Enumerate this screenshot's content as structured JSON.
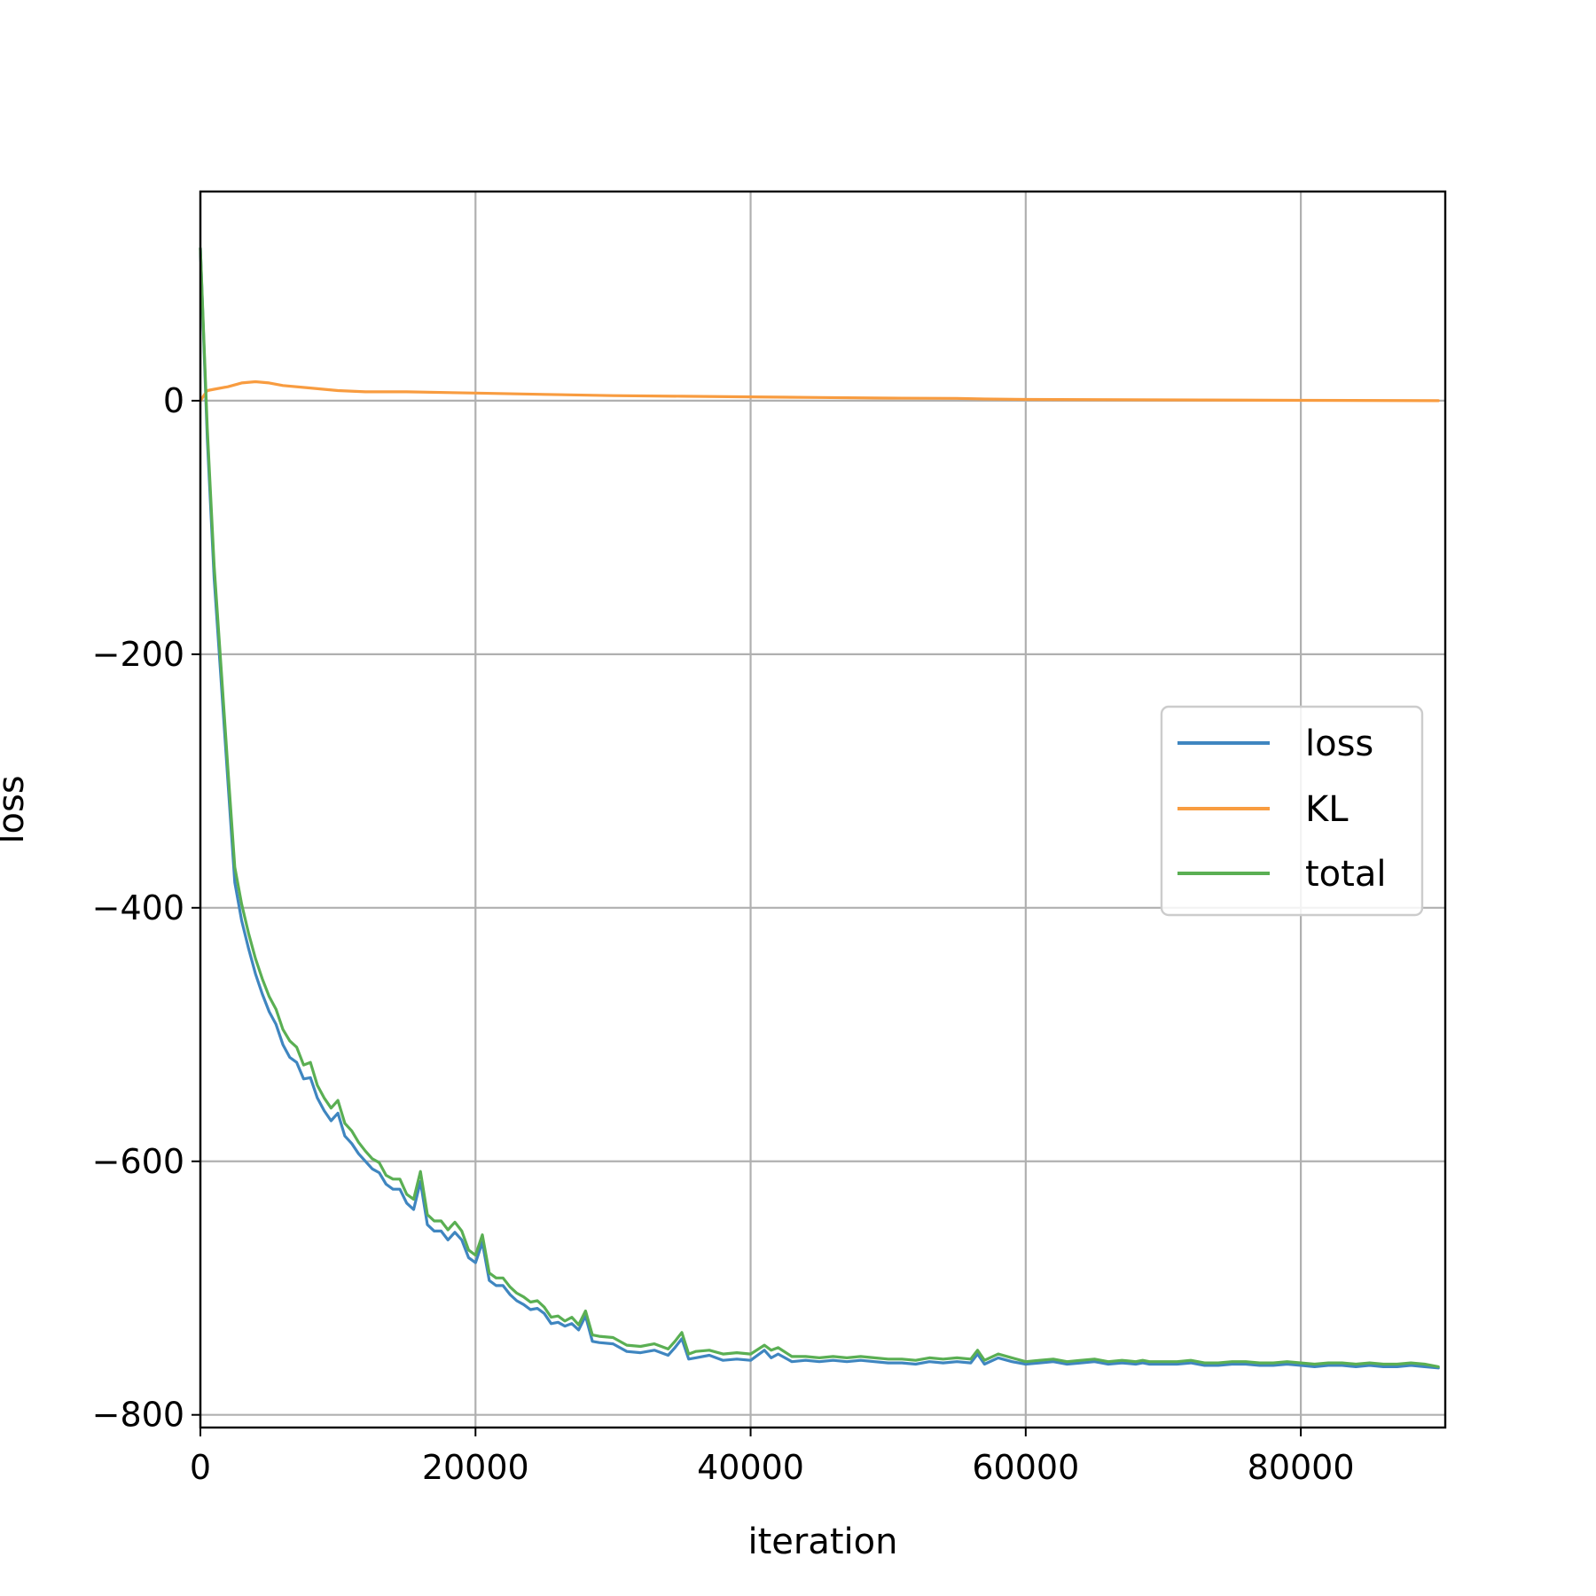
{
  "chart_data": {
    "type": "line",
    "title": "",
    "xlabel": "iteration",
    "ylabel": "loss",
    "xlim": [
      0,
      90500
    ],
    "ylim": [
      -810,
      165
    ],
    "xticks": [
      0,
      20000,
      40000,
      60000,
      80000
    ],
    "xtick_labels": [
      "0",
      "20000",
      "40000",
      "60000",
      "80000"
    ],
    "yticks": [
      -800,
      -600,
      -400,
      -200,
      0
    ],
    "ytick_labels": [
      "−800",
      "−600",
      "−400",
      "−200",
      "0"
    ],
    "grid": true,
    "legend": {
      "placement": "center-right",
      "entries": [
        "loss",
        "KL",
        "total"
      ]
    },
    "series": [
      {
        "name": "loss",
        "color": "#3f86c0",
        "x": [
          0,
          500,
          1000,
          1500,
          2000,
          2500,
          3000,
          3500,
          4000,
          4500,
          5000,
          5500,
          6000,
          6500,
          7000,
          7500,
          8000,
          8500,
          9000,
          9500,
          10000,
          10500,
          11000,
          11500,
          12000,
          12500,
          13000,
          13500,
          14000,
          14500,
          15000,
          15500,
          16000,
          16500,
          17000,
          17500,
          18000,
          18500,
          19000,
          19500,
          20000,
          20500,
          21000,
          21500,
          22000,
          22500,
          23000,
          23500,
          24000,
          24500,
          25000,
          25500,
          26000,
          26500,
          27000,
          27500,
          28000,
          28500,
          29000,
          30000,
          31000,
          32000,
          33000,
          34000,
          34500,
          35000,
          35500,
          36000,
          37000,
          38000,
          39000,
          40000,
          41000,
          41500,
          42000,
          43000,
          44000,
          45000,
          46000,
          47000,
          48000,
          49000,
          50000,
          51000,
          52000,
          53000,
          54000,
          55000,
          56000,
          56500,
          57000,
          58000,
          59000,
          60000,
          61000,
          62000,
          63000,
          64000,
          65000,
          66000,
          67000,
          68000,
          68500,
          69000,
          70000,
          71000,
          72000,
          73000,
          74000,
          75000,
          76000,
          77000,
          78000,
          79000,
          80000,
          81000,
          82000,
          83000,
          84000,
          85000,
          86000,
          87000,
          88000,
          89000,
          90000
        ],
        "values": [
          120,
          -30,
          -140,
          -220,
          -300,
          -380,
          -410,
          -432,
          -452,
          -468,
          -482,
          -492,
          -508,
          -518,
          -522,
          -535,
          -534,
          -550,
          -560,
          -568,
          -562,
          -580,
          -586,
          -594,
          -600,
          -606,
          -609,
          -618,
          -622,
          -622,
          -633,
          -638,
          -616,
          -650,
          -655,
          -655,
          -662,
          -656,
          -662,
          -676,
          -680,
          -664,
          -694,
          -698,
          -698,
          -705,
          -710,
          -713,
          -717,
          -716,
          -720,
          -728,
          -727,
          -730,
          -728,
          -733,
          -722,
          -742,
          -743,
          -744,
          -750,
          -751,
          -749,
          -753,
          -747,
          -740,
          -756,
          -755,
          -753,
          -757,
          -756,
          -757,
          -749,
          -755,
          -752,
          -758,
          -757,
          -758,
          -757,
          -758,
          -757,
          -758,
          -759,
          -759,
          -760,
          -758,
          -759,
          -758,
          -759,
          -752,
          -760,
          -755,
          -758,
          -760,
          -759,
          -758,
          -760,
          -759,
          -758,
          -760,
          -759,
          -760,
          -759,
          -760,
          -760,
          -760,
          -759,
          -761,
          -761,
          -760,
          -760,
          -761,
          -761,
          -760,
          -761,
          -762,
          -761,
          -761,
          -762,
          -761,
          -762,
          -762,
          -761,
          -762,
          -763
        ]
      },
      {
        "name": "KL",
        "color": "#f89c40",
        "x": [
          0,
          500,
          1000,
          2000,
          3000,
          4000,
          5000,
          6000,
          8000,
          10000,
          12000,
          15000,
          20000,
          25000,
          30000,
          35000,
          40000,
          45000,
          50000,
          55000,
          57000,
          60000,
          70000,
          80000,
          90000
        ],
        "values": [
          0,
          8,
          9,
          11,
          14,
          15,
          14,
          12,
          10,
          8,
          7,
          7,
          6,
          5,
          4,
          3.5,
          3,
          2.5,
          2,
          1.8,
          1.3,
          1,
          0.6,
          0.3,
          0
        ]
      },
      {
        "name": "total",
        "color": "#5aaf53",
        "x": [
          0,
          500,
          1000,
          1500,
          2000,
          2500,
          3000,
          3500,
          4000,
          4500,
          5000,
          5500,
          6000,
          6500,
          7000,
          7500,
          8000,
          8500,
          9000,
          9500,
          10000,
          10500,
          11000,
          11500,
          12000,
          12500,
          13000,
          13500,
          14000,
          14500,
          15000,
          15500,
          16000,
          16500,
          17000,
          17500,
          18000,
          18500,
          19000,
          19500,
          20000,
          20500,
          21000,
          21500,
          22000,
          22500,
          23000,
          23500,
          24000,
          24500,
          25000,
          25500,
          26000,
          26500,
          27000,
          27500,
          28000,
          28500,
          29000,
          30000,
          31000,
          32000,
          33000,
          34000,
          34500,
          35000,
          35500,
          36000,
          37000,
          38000,
          39000,
          40000,
          41000,
          41500,
          42000,
          43000,
          44000,
          45000,
          46000,
          47000,
          48000,
          49000,
          50000,
          51000,
          52000,
          53000,
          54000,
          55000,
          56000,
          56500,
          57000,
          58000,
          59000,
          60000,
          61000,
          62000,
          63000,
          64000,
          65000,
          66000,
          67000,
          68000,
          68500,
          69000,
          70000,
          71000,
          72000,
          73000,
          74000,
          75000,
          76000,
          77000,
          78000,
          79000,
          80000,
          81000,
          82000,
          83000,
          84000,
          85000,
          86000,
          87000,
          88000,
          89000,
          90000
        ],
        "values": [
          120,
          -22,
          -130,
          -210,
          -290,
          -368,
          -397,
          -420,
          -440,
          -456,
          -470,
          -480,
          -496,
          -505,
          -510,
          -524,
          -522,
          -540,
          -550,
          -558,
          -552,
          -570,
          -576,
          -585,
          -592,
          -598,
          -601,
          -611,
          -614,
          -614,
          -626,
          -630,
          -608,
          -642,
          -647,
          -647,
          -654,
          -648,
          -655,
          -670,
          -674,
          -658,
          -688,
          -692,
          -692,
          -699,
          -704,
          -707,
          -711,
          -710,
          -715,
          -723,
          -722,
          -726,
          -723,
          -729,
          -718,
          -737,
          -738,
          -739,
          -745,
          -746,
          -744,
          -748,
          -742,
          -735,
          -752,
          -750,
          -749,
          -752,
          -751,
          -752,
          -745,
          -749,
          -747,
          -754,
          -754,
          -755,
          -754,
          -755,
          -754,
          -755,
          -756,
          -756,
          -757,
          -755,
          -756,
          -755,
          -756,
          -749,
          -757,
          -752,
          -755,
          -758,
          -757,
          -756,
          -758,
          -757,
          -756,
          -758,
          -757,
          -758,
          -757,
          -758,
          -758,
          -758,
          -757,
          -759,
          -759,
          -758,
          -758,
          -759,
          -759,
          -758,
          -759,
          -760,
          -759,
          -759,
          -760,
          -759,
          -760,
          -760,
          -759,
          -760,
          -762
        ]
      }
    ]
  }
}
